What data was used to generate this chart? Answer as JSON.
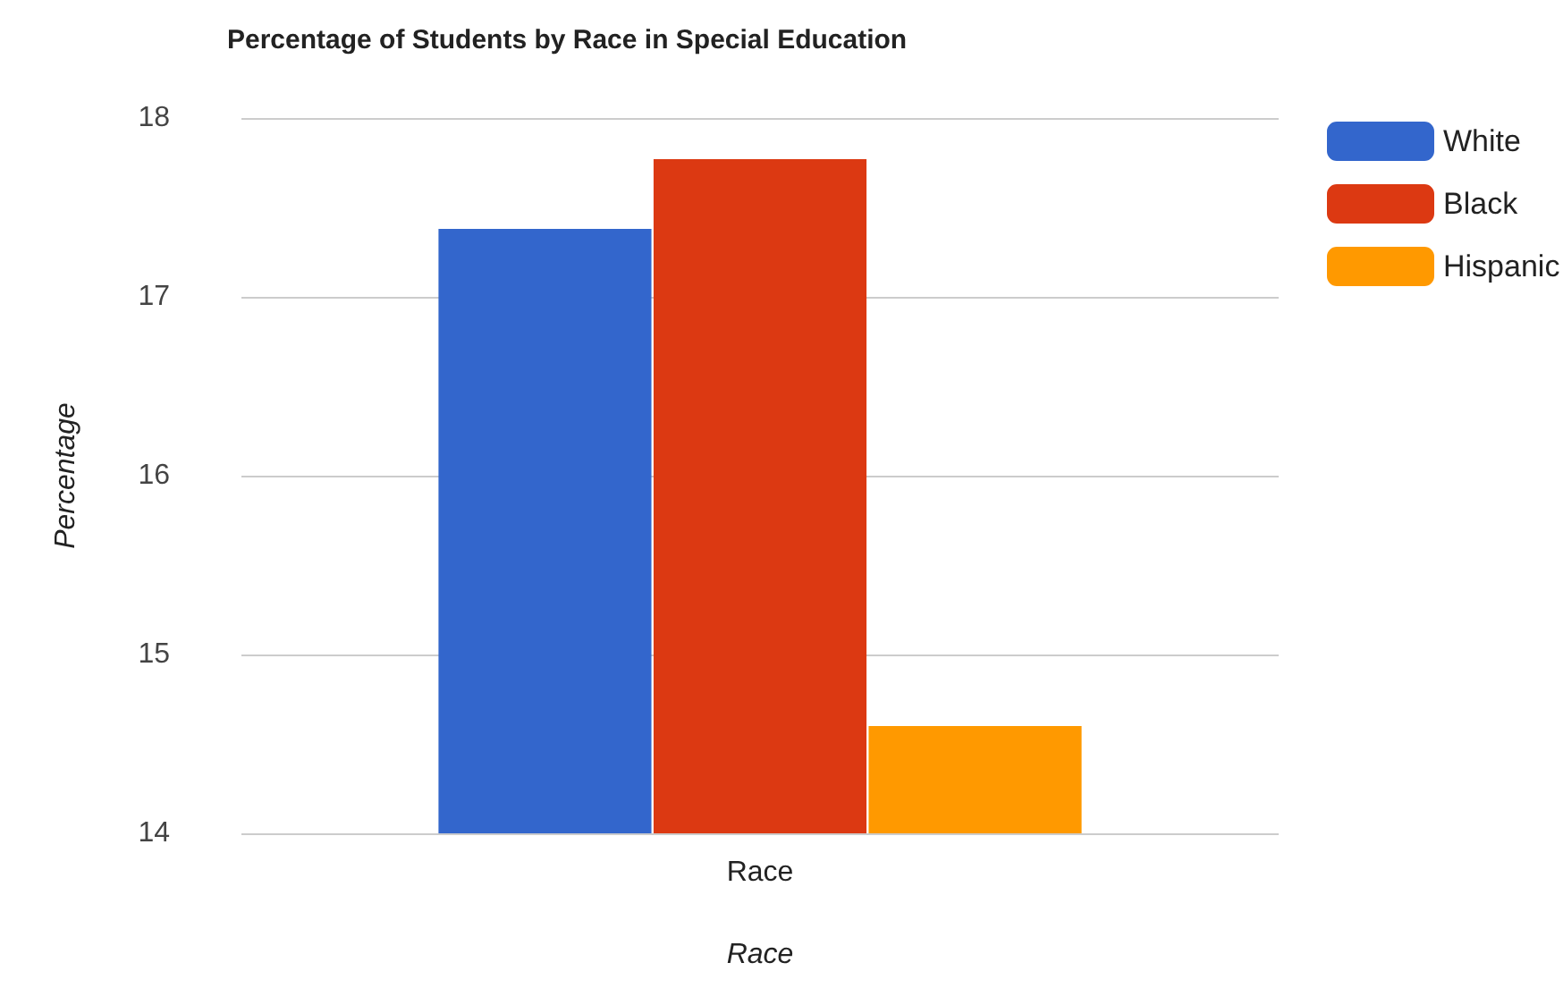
{
  "chart_data": {
    "type": "bar",
    "title": "Percentage of Students by Race in Special Education",
    "xlabel": "Race",
    "ylabel": "Percentage",
    "categories": [
      "Race"
    ],
    "series": [
      {
        "name": "White",
        "color": "#3366cc",
        "values": [
          17.38
        ]
      },
      {
        "name": "Black",
        "color": "#dc3912",
        "values": [
          17.77
        ]
      },
      {
        "name": "Hispanic",
        "color": "#ff9900",
        "values": [
          14.6
        ]
      }
    ],
    "ylim": [
      14,
      18
    ],
    "yticks": [
      14,
      15,
      16,
      17,
      18
    ],
    "grid": "y",
    "legend": "top right"
  }
}
